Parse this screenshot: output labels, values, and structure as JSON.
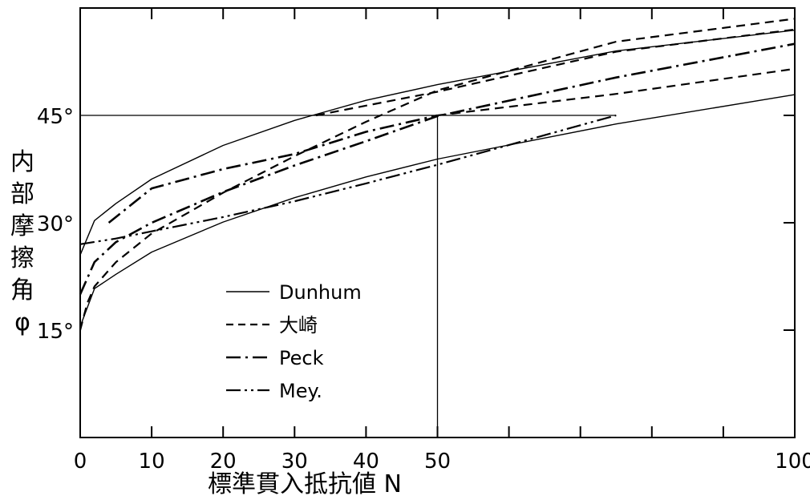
{
  "chart_data": {
    "type": "line",
    "title": "",
    "xlabel": "標準貫入抵抗値 N",
    "ylabel_chars": [
      "内",
      "部",
      "摩",
      "擦",
      "角",
      "φ"
    ],
    "xlim": [
      0,
      100
    ],
    "ylim": [
      0,
      60
    ],
    "x_tick_labels": [
      {
        "value": 0,
        "label": "0"
      },
      {
        "value": 10,
        "label": "10"
      },
      {
        "value": 20,
        "label": "20"
      },
      {
        "value": 30,
        "label": "30"
      },
      {
        "value": 40,
        "label": "40"
      },
      {
        "value": 50,
        "label": "50"
      },
      {
        "value": 100,
        "label": "100"
      }
    ],
    "y_tick_labels": [
      {
        "value": 15,
        "label": "15°"
      },
      {
        "value": 30,
        "label": "30°"
      },
      {
        "value": 45,
        "label": "45°"
      }
    ],
    "x_minor_ticks": [
      10,
      20,
      30,
      40,
      50,
      60,
      70,
      80,
      90
    ],
    "y_minor_ticks": [
      15,
      30,
      45
    ],
    "reference_lines": [
      {
        "from": [
          0,
          45
        ],
        "to": [
          75,
          45
        ]
      },
      {
        "from": [
          50,
          0
        ],
        "to": [
          50,
          45
        ]
      }
    ],
    "legend": [
      {
        "name": "Dunhum",
        "style": "solid"
      },
      {
        "name": "大崎",
        "style": "dashed"
      },
      {
        "name": "Peck",
        "style": "dashdot"
      },
      {
        "name": "Mey.",
        "style": "dashdotdot"
      }
    ],
    "series": [
      {
        "name": "Dunhum",
        "style": "solid",
        "x": [
          0,
          2,
          5,
          10,
          20,
          30,
          40,
          50,
          75,
          100
        ],
        "y": [
          25.5,
          30.3,
          32.7,
          36.1,
          40.8,
          44.3,
          47.1,
          49.3,
          54.0,
          56.9
        ]
      },
      {
        "name": "Dunhum",
        "style": "solid",
        "x": [
          0,
          2,
          5,
          10,
          20,
          30,
          40,
          50,
          75,
          100
        ],
        "y": [
          15.5,
          20.8,
          22.8,
          25.9,
          30.1,
          33.5,
          36.4,
          38.9,
          43.8,
          47.9
        ]
      },
      {
        "name": "大崎",
        "style": "dashed",
        "x": [
          0,
          1,
          2,
          5,
          10,
          20,
          30,
          40,
          50,
          75,
          100
        ],
        "y": [
          15.0,
          18.8,
          21.1,
          24.5,
          28.5,
          34.2,
          39.3,
          44.1,
          48.5,
          55.3,
          58.5
        ]
      },
      {
        "name": "大崎",
        "style": "dashed",
        "x": [
          50,
          75,
          100
        ],
        "y": [
          45.0,
          48.0,
          51.5
        ]
      },
      {
        "name": "大崎",
        "style": "dashed",
        "x": [
          33,
          50,
          75,
          100
        ],
        "y": [
          45.0,
          48.3,
          53.9,
          57.0
        ]
      },
      {
        "name": "Peck",
        "style": "dashdot",
        "x": [
          0,
          2,
          5,
          10,
          20,
          30,
          40,
          50,
          75,
          100
        ],
        "y": [
          20.0,
          24.5,
          27.3,
          30.0,
          34.3,
          38.0,
          41.4,
          44.9,
          50.3,
          55.0
        ]
      },
      {
        "name": "Peck",
        "style": "dashdot",
        "x": [
          4,
          10,
          20,
          30,
          40,
          50
        ],
        "y": [
          30.0,
          34.8,
          37.5,
          39.6,
          42.7,
          45.0
        ]
      },
      {
        "name": "Mey.",
        "style": "dashdotdot",
        "x": [
          0,
          5,
          10,
          20,
          30,
          40,
          50,
          75
        ],
        "y": [
          27.0,
          27.8,
          28.8,
          30.8,
          33.0,
          35.5,
          38.1,
          45.0
        ]
      }
    ]
  }
}
